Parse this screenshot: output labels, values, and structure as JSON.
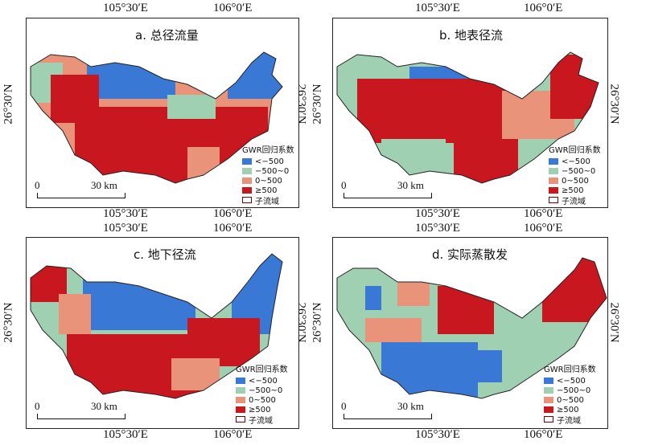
{
  "coords": {
    "lon_left": "105°30′E",
    "lon_right": "106°0′E",
    "lat": "26°30′N"
  },
  "panels": [
    {
      "title": "a. 总径流量"
    },
    {
      "title": "b. 地表径流"
    },
    {
      "title": "c. 地下径流"
    },
    {
      "title": "d. 实际蒸散发"
    }
  ],
  "legend": {
    "title": "GWR回归系数",
    "items": [
      {
        "label": "<−500",
        "color": "#3a78d6"
      },
      {
        "label": "−500~0",
        "color": "#9fd0b2"
      },
      {
        "label": "0~500",
        "color": "#e8937a"
      },
      {
        "label": "≥500",
        "color": "#c8171f"
      },
      {
        "label": "子流域",
        "color": "#7a0000",
        "outline": true
      }
    ]
  },
  "scale": {
    "zero": "0",
    "dist": "30 km"
  },
  "colors": {
    "outline": "#222222",
    "background": "#ffffff"
  }
}
